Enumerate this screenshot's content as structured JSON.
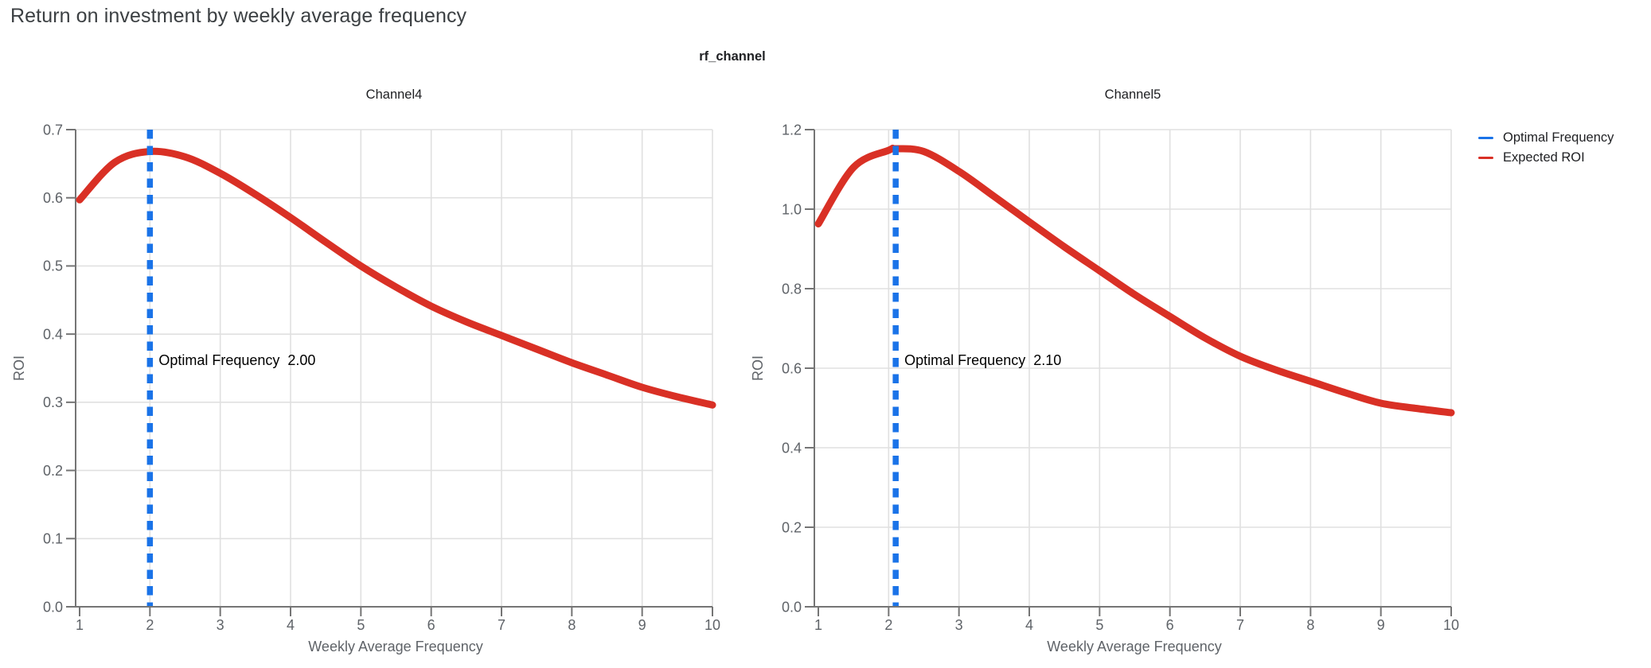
{
  "page": {
    "title": "Return on investment by weekly average frequency"
  },
  "facet_title": "rf_channel",
  "legend": {
    "items": [
      {
        "label": "Optimal Frequency",
        "color": "#1a73e8"
      },
      {
        "label": "Expected ROI",
        "color": "#d93025"
      }
    ]
  },
  "colors": {
    "optimal_frequency_line": "#1a73e8",
    "expected_roi_line": "#d93025",
    "gridline": "#e0e0e0",
    "axis": "#757575",
    "tick_text": "#5f6368",
    "annotation_text": "#000000",
    "title_text": "#3c4043",
    "chart_title_text": "#202124"
  },
  "chart_data": [
    {
      "type": "line",
      "title": "Channel4",
      "xlabel": "Weekly Average Frequency",
      "ylabel": "ROI",
      "xlim": [
        1,
        10
      ],
      "ylim": [
        0,
        0.7
      ],
      "xticks": [
        1,
        2,
        3,
        4,
        5,
        6,
        7,
        8,
        9,
        10
      ],
      "yticks": [
        0.0,
        0.1,
        0.2,
        0.3,
        0.4,
        0.5,
        0.6,
        0.7
      ],
      "grid": true,
      "optimal_frequency": 2.0,
      "annotation": {
        "label": "Optimal Frequency",
        "value": "2.00"
      },
      "series": [
        {
          "name": "Expected ROI",
          "x": [
            1,
            1.5,
            2,
            2.5,
            3,
            3.5,
            4,
            4.5,
            5,
            5.5,
            6,
            6.5,
            7,
            7.5,
            8,
            8.5,
            9,
            9.5,
            10
          ],
          "y": [
            0.597,
            0.652,
            0.668,
            0.66,
            0.636,
            0.605,
            0.571,
            0.535,
            0.5,
            0.469,
            0.441,
            0.418,
            0.398,
            0.378,
            0.358,
            0.34,
            0.322,
            0.308,
            0.296
          ]
        }
      ]
    },
    {
      "type": "line",
      "title": "Channel5",
      "xlabel": "Weekly Average Frequency",
      "ylabel": "ROI",
      "xlim": [
        1,
        10
      ],
      "ylim": [
        0,
        1.2
      ],
      "xticks": [
        1,
        2,
        3,
        4,
        5,
        6,
        7,
        8,
        9,
        10
      ],
      "yticks": [
        0.0,
        0.2,
        0.4,
        0.6,
        0.8,
        1.0,
        1.2
      ],
      "grid": true,
      "optimal_frequency": 2.1,
      "annotation": {
        "label": "Optimal Frequency",
        "value": "2.10"
      },
      "series": [
        {
          "name": "Expected ROI",
          "x": [
            1,
            1.5,
            2,
            2.1,
            2.5,
            3,
            3.5,
            4,
            4.5,
            5,
            5.5,
            6,
            6.5,
            7,
            7.5,
            8,
            8.5,
            9,
            9.5,
            10
          ],
          "y": [
            0.963,
            1.105,
            1.148,
            1.152,
            1.145,
            1.095,
            1.032,
            0.968,
            0.905,
            0.845,
            0.785,
            0.73,
            0.676,
            0.63,
            0.596,
            0.567,
            0.538,
            0.512,
            0.499,
            0.488
          ]
        }
      ]
    }
  ]
}
